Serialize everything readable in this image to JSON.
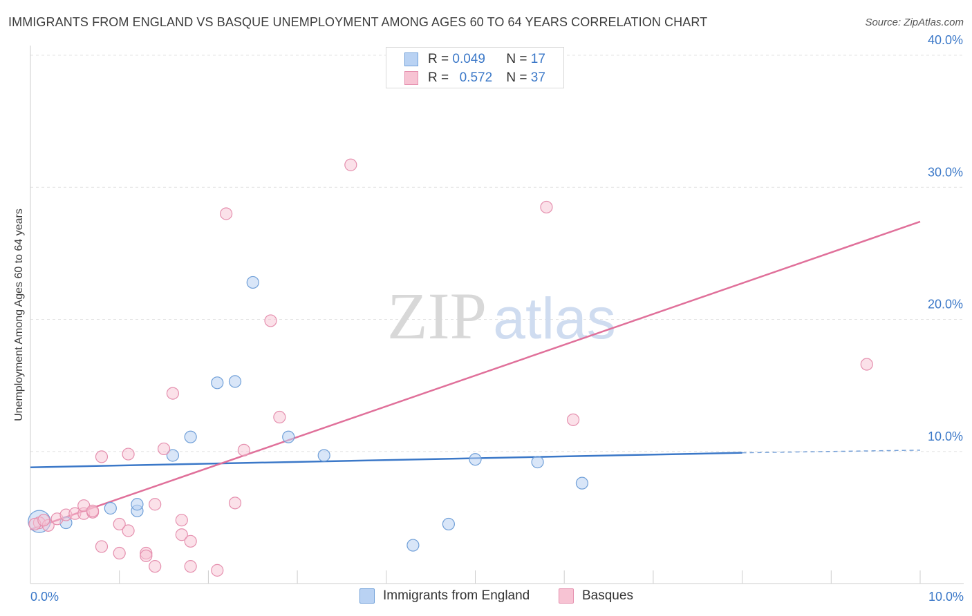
{
  "title": "IMMIGRANTS FROM ENGLAND VS BASQUE UNEMPLOYMENT AMONG AGES 60 TO 64 YEARS CORRELATION CHART",
  "source": "Source: ZipAtlas.com",
  "colors": {
    "blue": "#3b78c8",
    "blue_fill": "#b9d2f3",
    "pink": "#e0709a",
    "pink_fill": "#f7c3d3",
    "grid": "#e3e3e3"
  },
  "legend": {
    "rows": [
      {
        "r_label": "R =",
        "r_value": "0.049",
        "n_label": "N =",
        "n_value": "17"
      },
      {
        "r_label": "R =",
        "r_value": "0.572",
        "n_label": "N =",
        "n_value": "37"
      }
    ]
  },
  "bottom_legend": {
    "blue_label": "Immigrants from England",
    "pink_label": "Basques"
  },
  "chart_data": {
    "type": "scatter",
    "title": "IMMIGRANTS FROM ENGLAND VS BASQUE UNEMPLOYMENT AMONG AGES 60 TO 64 YEARS CORRELATION CHART",
    "xlabel": "",
    "ylabel": "Unemployment Among Ages 60 to 64 years",
    "xlim": [
      0,
      10
    ],
    "ylim": [
      0,
      40
    ],
    "x_tick_labels": [
      "0.0%",
      "10.0%"
    ],
    "y_ticks": [
      10,
      20,
      30,
      40
    ],
    "y_tick_labels": [
      "10.0%",
      "20.0%",
      "30.0%",
      "40.0%"
    ],
    "watermark": {
      "a": "ZIP",
      "b": "atlas"
    },
    "series": [
      {
        "name": "Immigrants from England",
        "r": 0.049,
        "n": 17,
        "points": [
          [
            0.1,
            4.7
          ],
          [
            0.4,
            4.6
          ],
          [
            0.9,
            5.7
          ],
          [
            1.2,
            5.5
          ],
          [
            1.2,
            6.0
          ],
          [
            1.6,
            9.7
          ],
          [
            1.8,
            11.1
          ],
          [
            2.1,
            15.2
          ],
          [
            2.3,
            15.3
          ],
          [
            2.5,
            22.8
          ],
          [
            2.9,
            11.1
          ],
          [
            3.3,
            9.7
          ],
          [
            4.3,
            2.9
          ],
          [
            4.7,
            4.5
          ],
          [
            5.0,
            9.4
          ],
          [
            5.7,
            9.2
          ],
          [
            6.2,
            7.6
          ]
        ],
        "trend": {
          "x0": 0,
          "y0": 8.8,
          "x1": 8.0,
          "y1": 9.9,
          "dash_to_x": 10.0,
          "dash_to_y": 10.1
        }
      },
      {
        "name": "Basques",
        "r": 0.572,
        "n": 37,
        "points": [
          [
            0.1,
            4.6
          ],
          [
            0.2,
            4.4
          ],
          [
            0.3,
            4.9
          ],
          [
            0.4,
            5.2
          ],
          [
            0.5,
            5.3
          ],
          [
            0.6,
            5.3
          ],
          [
            0.7,
            5.4
          ],
          [
            0.6,
            5.9
          ],
          [
            0.7,
            5.5
          ],
          [
            0.8,
            2.8
          ],
          [
            0.8,
            9.6
          ],
          [
            1.0,
            4.5
          ],
          [
            1.0,
            2.3
          ],
          [
            1.1,
            4.0
          ],
          [
            1.1,
            9.8
          ],
          [
            1.3,
            2.3
          ],
          [
            1.3,
            2.1
          ],
          [
            1.4,
            1.3
          ],
          [
            1.4,
            6.0
          ],
          [
            1.5,
            10.2
          ],
          [
            1.6,
            14.4
          ],
          [
            1.7,
            4.8
          ],
          [
            1.7,
            3.7
          ],
          [
            1.8,
            3.2
          ],
          [
            1.8,
            1.3
          ],
          [
            2.1,
            1.0
          ],
          [
            2.2,
            28.0
          ],
          [
            2.3,
            6.1
          ],
          [
            2.4,
            10.1
          ],
          [
            2.7,
            19.9
          ],
          [
            2.8,
            12.6
          ],
          [
            3.6,
            31.7
          ],
          [
            5.8,
            28.5
          ],
          [
            6.1,
            12.4
          ],
          [
            9.4,
            16.6
          ],
          [
            0.05,
            4.5
          ],
          [
            0.15,
            4.8
          ]
        ],
        "trend": {
          "x0": 0,
          "y0": 4.1,
          "x1": 10.0,
          "y1": 27.4
        }
      }
    ]
  }
}
